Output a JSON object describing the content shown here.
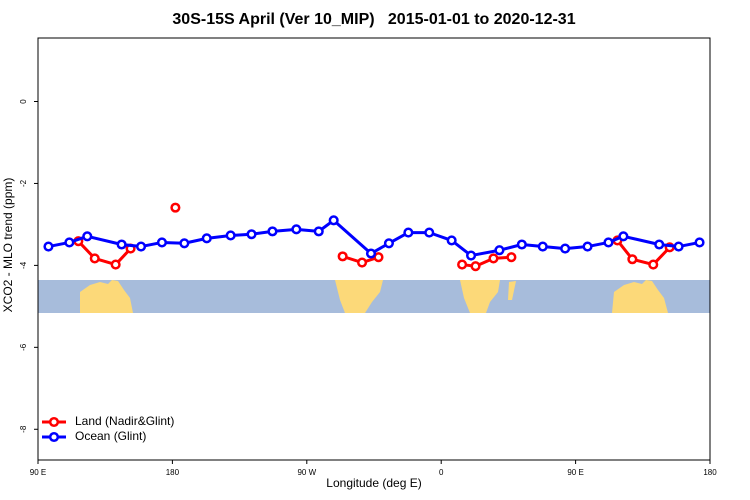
{
  "chart_data": {
    "type": "line",
    "title": "30S-15S April (Ver 10_MIP)   2015-01-01 to 2020-12-31",
    "x_label": "Longitude (deg E)",
    "y_label": "XCO2 - MLO trend (ppm)",
    "xlim": [
      90,
      540
    ],
    "xticks": [
      {
        "value": 90,
        "label": "90 E"
      },
      {
        "value": 180,
        "label": "180"
      },
      {
        "value": 270,
        "label": "90 W"
      },
      {
        "value": 360,
        "label": "0"
      },
      {
        "value": 450,
        "label": "90 E"
      },
      {
        "value": 540,
        "label": "180"
      }
    ],
    "ylim": [
      -8.75,
      1.55
    ],
    "yticks": [
      -8,
      -6,
      -4,
      -2,
      0
    ],
    "legend": "bottom-left",
    "series": [
      {
        "name": "Land (Nadir&Glint)",
        "color": "#ff0000",
        "x": [
          117,
          128,
          142,
          152,
          null,
          182,
          null,
          294,
          307,
          318,
          null,
          374,
          383,
          395,
          407,
          null,
          478,
          488,
          502,
          513
        ],
        "values": [
          -3.41,
          -3.83,
          -3.98,
          -3.59,
          null,
          -2.59,
          null,
          -3.78,
          -3.93,
          -3.8,
          null,
          -3.98,
          -4.02,
          -3.83,
          -3.8,
          null,
          -3.39,
          -3.85,
          -3.98,
          -3.56
        ]
      },
      {
        "name": "Ocean (Glint)",
        "color": "#0000ff",
        "x": [
          97,
          111,
          123,
          146,
          159,
          173,
          188,
          203,
          219,
          233,
          247,
          263,
          278,
          288,
          313,
          325,
          338,
          352,
          367,
          380,
          399,
          414,
          428,
          443,
          458,
          472,
          482,
          506,
          519,
          533
        ],
        "values": [
          -3.54,
          -3.44,
          -3.29,
          -3.49,
          -3.54,
          -3.44,
          -3.46,
          -3.34,
          -3.27,
          -3.24,
          -3.17,
          -3.12,
          -3.17,
          -2.9,
          -3.71,
          -3.46,
          -3.2,
          -3.2,
          -3.39,
          -3.76,
          -3.63,
          -3.49,
          -3.54,
          -3.59,
          -3.54,
          -3.44,
          -3.29,
          -3.49,
          -3.54,
          -3.44
        ]
      }
    ]
  }
}
